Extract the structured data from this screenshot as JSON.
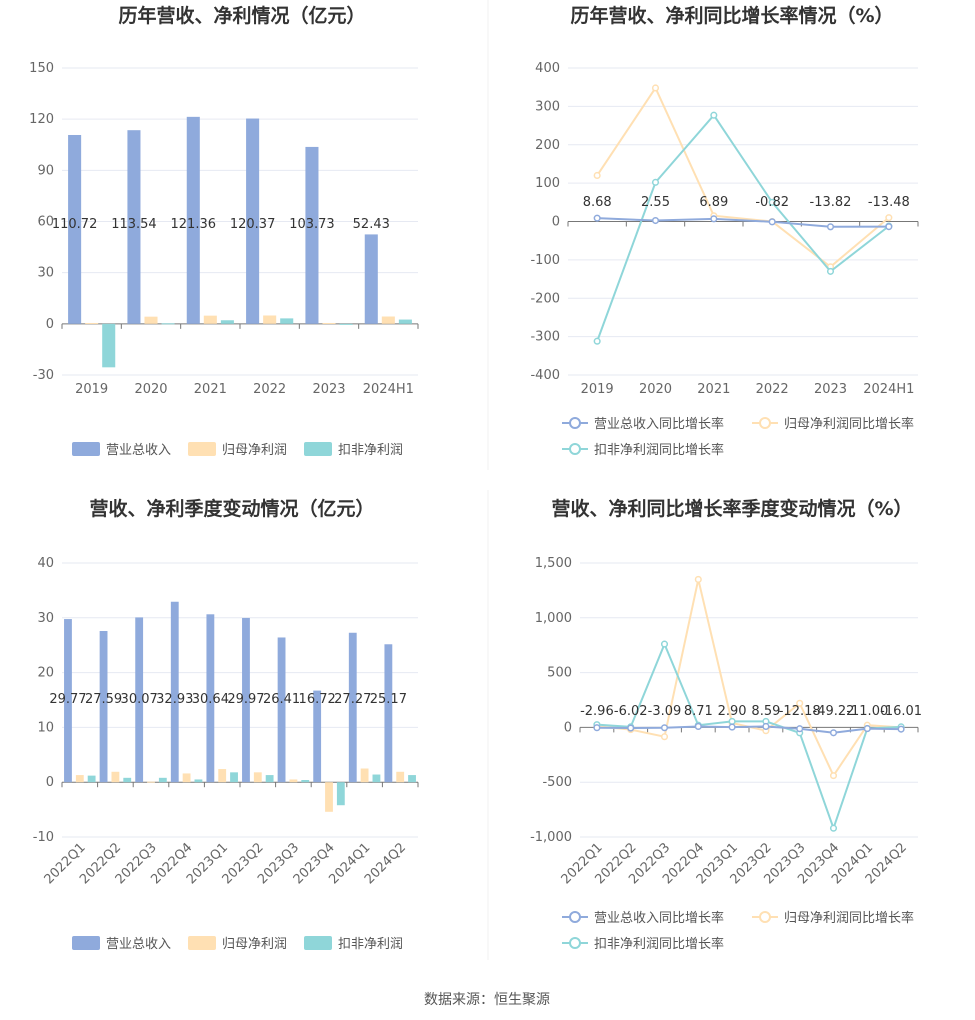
{
  "source": "数据来源：恒生聚源",
  "chart_data": [
    {
      "id": "annual_values",
      "type": "bar",
      "title": "历年营收、净利情况（亿元）",
      "categories": [
        "2019",
        "2020",
        "2021",
        "2022",
        "2023",
        "2024H1"
      ],
      "series": [
        {
          "name": "营业总收入",
          "color": "#8faadc",
          "values": [
            110.72,
            113.54,
            121.36,
            120.37,
            103.73,
            52.43
          ]
        },
        {
          "name": "归母净利润",
          "color": "#ffe0b3",
          "values": [
            0.5,
            4.2,
            4.8,
            4.9,
            0.5,
            4.3
          ]
        },
        {
          "name": "扣非净利润",
          "color": "#8fd6d9",
          "values": [
            -25.5,
            0.3,
            2.1,
            3.2,
            -0.6,
            2.5
          ]
        }
      ],
      "value_labels": [
        "110.72",
        "113.54",
        "121.36",
        "120.37",
        "103.73",
        "52.43"
      ],
      "yticks": [
        "150",
        "120",
        "90",
        "60",
        "30",
        "0",
        "-30"
      ],
      "ylim": [
        -30,
        150
      ]
    },
    {
      "id": "annual_growth",
      "type": "line",
      "title": "历年营收、净利同比增长率情况（%）",
      "categories": [
        "2019",
        "2020",
        "2021",
        "2022",
        "2023",
        "2024H1"
      ],
      "series": [
        {
          "name": "营业总收入同比增长率",
          "color": "#8faadc",
          "values": [
            8.68,
            2.55,
            6.89,
            -0.82,
            -13.82,
            -13.48
          ]
        },
        {
          "name": "归母净利润同比增长率",
          "color": "#ffe0b3",
          "values": [
            120,
            348,
            15,
            0,
            -118,
            10
          ]
        },
        {
          "name": "扣非净利润同比增长率",
          "color": "#8fd6d9",
          "values": [
            -312,
            102,
            277,
            50,
            -130,
            -12
          ]
        }
      ],
      "value_labels": [
        "8.68",
        "2.55",
        "6.89",
        "-0.82",
        "-13.82",
        "-13.48"
      ],
      "yticks": [
        "400",
        "300",
        "200",
        "100",
        "0",
        "-100",
        "-200",
        "-300",
        "-400"
      ],
      "ylim": [
        -400,
        400
      ]
    },
    {
      "id": "quarterly_values",
      "type": "bar",
      "title": "营收、净利季度变动情况（亿元）",
      "categories": [
        "2022Q1",
        "2022Q2",
        "2022Q3",
        "2022Q4",
        "2023Q1",
        "2023Q2",
        "2023Q3",
        "2023Q4",
        "2024Q1",
        "2024Q2"
      ],
      "series": [
        {
          "name": "营业总收入",
          "color": "#8faadc",
          "values": [
            29.77,
            27.59,
            30.07,
            32.93,
            30.64,
            29.97,
            26.41,
            16.72,
            27.27,
            25.17
          ]
        },
        {
          "name": "归母净利润",
          "color": "#ffe0b3",
          "values": [
            1.3,
            1.9,
            0.1,
            1.6,
            2.4,
            1.8,
            0.5,
            -5.4,
            2.5,
            1.9
          ]
        },
        {
          "name": "扣非净利润",
          "color": "#8fd6d9",
          "values": [
            1.2,
            0.8,
            0.8,
            0.5,
            1.8,
            1.3,
            0.4,
            -4.2,
            1.4,
            1.3
          ]
        }
      ],
      "value_labels": [
        "29.77",
        "27.59",
        "30.07",
        "32.93",
        "30.64",
        "29.97",
        "26.41",
        "16.72",
        "27.27",
        "25.17"
      ],
      "yticks": [
        "40",
        "30",
        "20",
        "10",
        "0",
        "-10"
      ],
      "ylim": [
        -10,
        40
      ]
    },
    {
      "id": "quarterly_growth",
      "type": "line",
      "title": "营收、净利同比增长率季度变动情况（%）",
      "categories": [
        "2022Q1",
        "2022Q2",
        "2022Q3",
        "2022Q4",
        "2023Q1",
        "2023Q2",
        "2023Q3",
        "2023Q4",
        "2024Q1",
        "2024Q2"
      ],
      "series": [
        {
          "name": "营业总收入同比增长率",
          "color": "#8faadc",
          "values": [
            -2.96,
            -6.02,
            -3.09,
            8.71,
            2.9,
            8.59,
            -12.18,
            -49.22,
            -11.0,
            -16.01
          ]
        },
        {
          "name": "归母净利润同比增长率",
          "color": "#ffe0b3",
          "values": [
            10,
            -20,
            -85,
            1350,
            40,
            -30,
            220,
            -440,
            20,
            0
          ]
        },
        {
          "name": "扣非净利润同比增长率",
          "color": "#8fd6d9",
          "values": [
            25,
            5,
            760,
            20,
            55,
            55,
            -50,
            -920,
            -10,
            5
          ]
        }
      ],
      "value_labels": [
        "-2.96",
        "-6.02",
        "-3.09",
        "8.71",
        "2.90",
        "8.59",
        "-12.18",
        "-49.22",
        "-11.00",
        "-16.01"
      ],
      "yticks": [
        "1,500",
        "1,000",
        "500",
        "0",
        "-500",
        "-1,000"
      ],
      "ylim": [
        -1000,
        1500
      ]
    }
  ]
}
